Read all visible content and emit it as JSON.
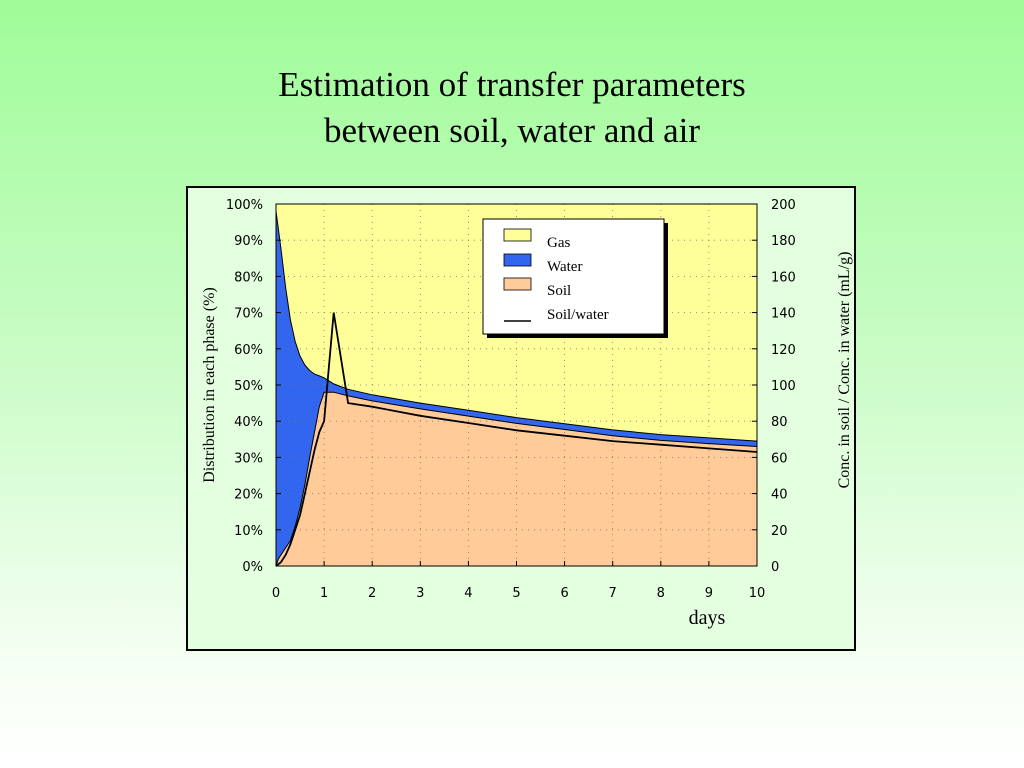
{
  "title": {
    "line1": "Estimation of transfer parameters",
    "line2": "between soil, water and air"
  },
  "colors": {
    "gas": "#ffff99",
    "water": "#3366ee",
    "soil": "#ffcc99",
    "ratio_line": "#000000"
  },
  "chart_data": {
    "type": "area",
    "xlabel": "days",
    "ylabel_left": "Distribution in each phase (%)",
    "ylabel_right": "Conc. in soil / Conc. in water (mL/g)",
    "xlim": [
      0,
      10
    ],
    "ylim_left": [
      0,
      100
    ],
    "ylim_right": [
      0,
      200
    ],
    "x_ticks": [
      "0",
      "1",
      "2",
      "3",
      "4",
      "5",
      "6",
      "7",
      "8",
      "9",
      "10"
    ],
    "y_ticks_left": [
      "0%",
      "10%",
      "20%",
      "30%",
      "40%",
      "50%",
      "60%",
      "70%",
      "80%",
      "90%",
      "100%"
    ],
    "y_ticks_right": [
      "0",
      "20",
      "40",
      "60",
      "80",
      "100",
      "120",
      "140",
      "160",
      "180",
      "200"
    ],
    "grid": true,
    "legend_position": "top-right",
    "stacking": "100% stacked (soil, water, gas)",
    "x": [
      0,
      0.05,
      0.1,
      0.2,
      0.3,
      0.4,
      0.5,
      0.6,
      0.7,
      0.8,
      0.9,
      1.0,
      1.2,
      1.5,
      2,
      3,
      4,
      5,
      6,
      7,
      8,
      9,
      10
    ],
    "series": [
      {
        "name": "Gas",
        "type": "area",
        "axis": "left",
        "values": [
          2,
          7,
          12,
          23,
          32,
          38,
          42,
          44.5,
          46,
          47,
          47.5,
          48,
          49.7,
          51.2,
          52.7,
          55,
          57,
          59,
          60.7,
          62.4,
          63.7,
          64.6,
          65.5
        ]
      },
      {
        "name": "Water",
        "type": "area",
        "axis": "left",
        "values": [
          98,
          91,
          85,
          72,
          61,
          51,
          42,
          33,
          24,
          16,
          8.5,
          4,
          2.3,
          1.8,
          1.7,
          1.6,
          1.6,
          1.6,
          1.6,
          1.6,
          1.6,
          1.6,
          1.5
        ]
      },
      {
        "name": "Soil",
        "type": "area",
        "axis": "left",
        "values": [
          0,
          2,
          3,
          5,
          7,
          11,
          16,
          22.5,
          30,
          37,
          44,
          48,
          48,
          47,
          45.6,
          43.4,
          41.4,
          39.4,
          37.7,
          36,
          34.7,
          33.8,
          33
        ]
      },
      {
        "name": "Soil/water",
        "type": "line",
        "axis": "right",
        "values": [
          0,
          1,
          2,
          6,
          12,
          20,
          28,
          40,
          52,
          64,
          74,
          80,
          140,
          90,
          88,
          83,
          79,
          75,
          72,
          69,
          67,
          65,
          63
        ]
      }
    ]
  }
}
